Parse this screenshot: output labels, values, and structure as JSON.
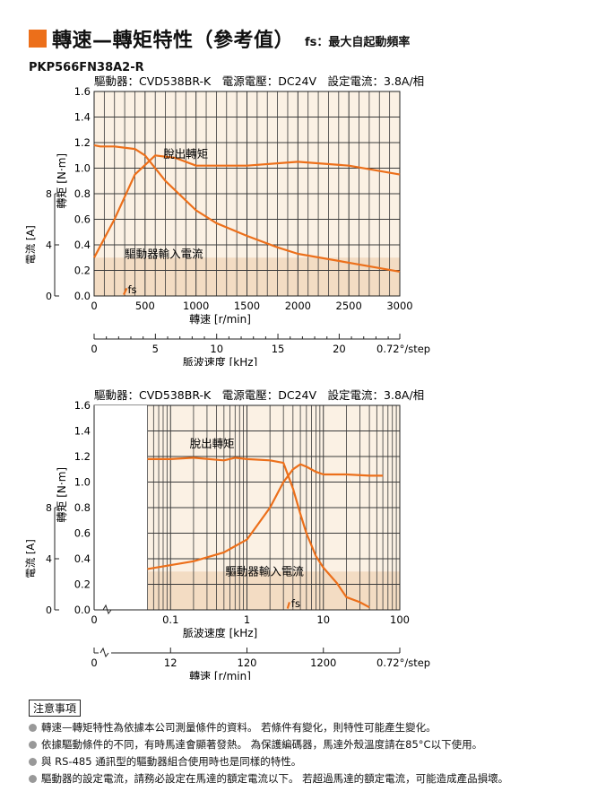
{
  "header": {
    "title": "轉速—轉矩特性（參考值）",
    "subtitle": "fs：最大自起動頻率",
    "model": "PKP566FN38A2-R"
  },
  "colors": {
    "accent": "#ec6f1a",
    "grid": "#3a3a3a",
    "plot_bg": "#fbf1e4",
    "curve": "#ec6f1a"
  },
  "chart_data": [
    {
      "type": "line",
      "spec": "驅動器：CVD538BR-K　電源電壓：DC24V　設定電流：3.8A/相",
      "xlabel": "轉速 [r/min]",
      "ylabel": "轉矩 [N·m]",
      "y2label": "電流 [A]",
      "xlabel_secondary": "脈波速度 [kHz]",
      "x_scale": "linear",
      "xlim": [
        0,
        3000
      ],
      "ylim": [
        0,
        1.6
      ],
      "y2lim": [
        0,
        8
      ],
      "x_ticks": [
        0,
        500,
        1000,
        1500,
        2000,
        2500,
        3000
      ],
      "y_ticks": [
        0,
        0.2,
        0.4,
        0.6,
        0.8,
        1.0,
        1.2,
        1.4,
        1.6
      ],
      "y2_ticks": [
        0,
        4,
        8
      ],
      "secondary_ticks": [
        "0",
        "5",
        "10",
        "15",
        "20",
        "0.72°/step"
      ],
      "grid": true,
      "annotations": [
        "脫出轉矩",
        "驅動器輸入電流",
        "fs"
      ],
      "series": [
        {
          "name": "脫出轉矩",
          "x": [
            0,
            60,
            200,
            400,
            500,
            700,
            1000,
            1200,
            1500,
            1800,
            2000,
            2500,
            3000
          ],
          "y": [
            1.18,
            1.17,
            1.17,
            1.15,
            1.1,
            0.9,
            0.67,
            0.57,
            0.47,
            0.38,
            0.33,
            0.26,
            0.19
          ]
        },
        {
          "name": "驅動器輸入電流",
          "unit": "A",
          "x": [
            0,
            200,
            400,
            600,
            800,
            1000,
            1500,
            2000,
            2500,
            3000
          ],
          "y": [
            0.3,
            0.6,
            0.95,
            1.1,
            1.08,
            1.02,
            1.02,
            1.05,
            1.02,
            0.95
          ]
        },
        {
          "name": "fs",
          "x": [
            290,
            320
          ],
          "y": [
            0.01,
            0.06
          ]
        }
      ]
    },
    {
      "type": "line",
      "spec": "驅動器：CVD538BR-K　電源電壓：DC24V　設定電流：3.8A/相",
      "xlabel": "脈波速度 [kHz]",
      "ylabel": "轉矩 [N·m]",
      "y2label": "電流 [A]",
      "xlabel_secondary": "轉速 [r/min]",
      "x_scale": "log",
      "xlim": [
        0.01,
        100
      ],
      "ylim": [
        0,
        1.6
      ],
      "y2lim": [
        0,
        8
      ],
      "x_ticks": [
        "0.1",
        "1",
        "10",
        "100"
      ],
      "y_ticks": [
        0,
        0.2,
        0.4,
        0.6,
        0.8,
        1.0,
        1.2,
        1.4,
        1.6
      ],
      "y2_ticks": [
        0,
        4,
        8
      ],
      "secondary_ticks": [
        "0",
        "12",
        "120",
        "1200",
        "0.72°/step"
      ],
      "axis_break_label": "0",
      "grid": true,
      "annotations": [
        "脫出轉矩",
        "驅動器輸入電流",
        "fs"
      ],
      "series": [
        {
          "name": "脫出轉矩",
          "x": [
            0.05,
            0.1,
            0.2,
            0.5,
            0.7,
            1,
            2,
            3,
            4,
            5,
            6,
            8,
            10,
            15,
            20,
            30,
            40
          ],
          "y": [
            1.18,
            1.18,
            1.19,
            1.17,
            1.19,
            1.18,
            1.17,
            1.15,
            0.95,
            0.75,
            0.6,
            0.42,
            0.33,
            0.21,
            0.1,
            0.06,
            0.02
          ]
        },
        {
          "name": "驅動器輸入電流",
          "unit": "A",
          "x": [
            0.05,
            0.2,
            0.5,
            1,
            2,
            3,
            4,
            5,
            6,
            8,
            10,
            20,
            40,
            60
          ],
          "y": [
            0.32,
            0.38,
            0.45,
            0.55,
            0.8,
            1.0,
            1.1,
            1.14,
            1.12,
            1.08,
            1.06,
            1.06,
            1.05,
            1.05
          ]
        },
        {
          "name": "fs",
          "x": [
            3.4,
            3.6
          ],
          "y": [
            0.01,
            0.06
          ]
        }
      ]
    }
  ],
  "notes": {
    "heading": "注意事項",
    "items": [
      "轉速—轉矩特性為依據本公司測量條件的資料。 若條件有變化，則特性可能產生變化。",
      "依據驅動條件的不同，有時馬達會顯著發熱。 為保護編碼器，馬達外殼溫度請在85°C以下使用。",
      "與 RS-485 通訊型的驅動器組合使用時也是同樣的特性。",
      "驅動器的設定電流，請務必設定在馬達的額定電流以下。 若超過馬達的額定電流，可能造成產品損壞。"
    ]
  }
}
